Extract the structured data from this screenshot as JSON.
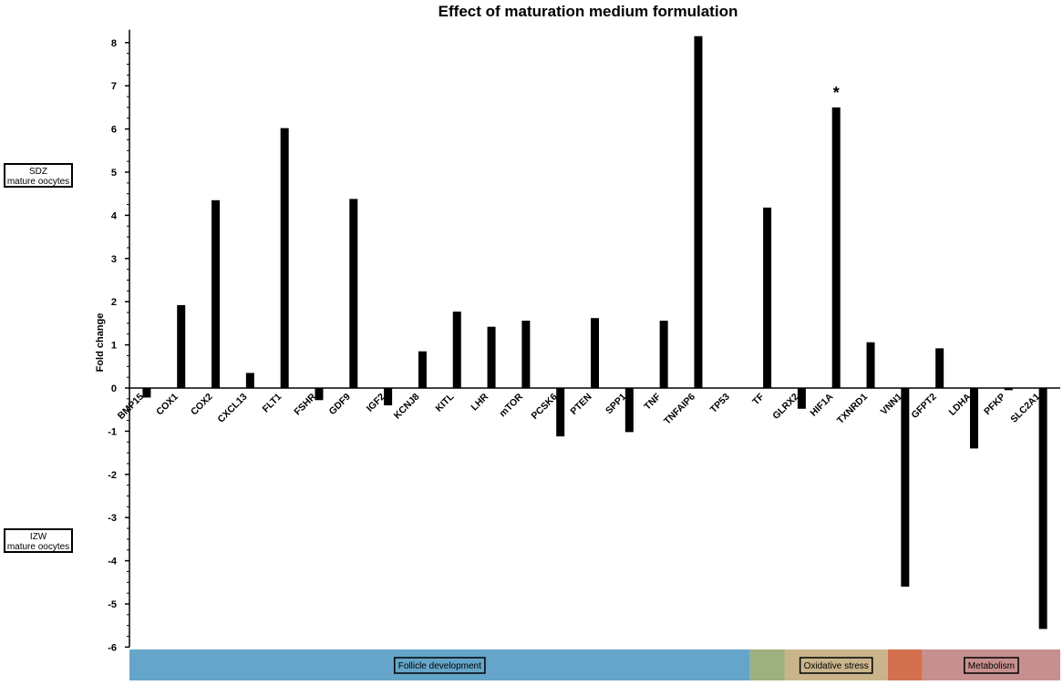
{
  "chart_data": {
    "type": "bar",
    "title": "Effect of maturation medium formulation",
    "ylabel": "Fold change",
    "xlabel": "",
    "ylim": [
      -6,
      8.3
    ],
    "yticks": [
      -6,
      -5,
      -4,
      -3,
      -2,
      -1,
      0,
      1,
      2,
      3,
      4,
      5,
      6,
      7,
      8
    ],
    "categories": [
      "BMP15",
      "COX1",
      "COX2",
      "CXCL13",
      "FLT1",
      "FSHR",
      "GDF9",
      "IGF2",
      "KCNJ8",
      "KITL",
      "LHR",
      "mTOR",
      "PCSK6",
      "PTEN",
      "SPP1",
      "TNF",
      "TNFAIP6",
      "TP53",
      "TF",
      "GLRX2",
      "HIF1A",
      "TXNRD1",
      "VNN1",
      "GFPT2",
      "LDHA",
      "PFKP",
      "SLC2A1"
    ],
    "values": [
      -0.22,
      1.92,
      4.35,
      0.35,
      6.02,
      -0.28,
      4.38,
      -0.4,
      0.85,
      1.77,
      1.42,
      1.56,
      -1.12,
      1.62,
      -1.02,
      1.56,
      8.15,
      0.0,
      4.18,
      -0.48,
      6.5,
      1.06,
      -4.6,
      0.92,
      -1.4,
      -0.05,
      -5.58
    ],
    "annotations": [
      {
        "category": "HIF1A",
        "text": "*"
      }
    ],
    "grid": false,
    "groups": [
      {
        "label": "Follicle development",
        "color": "#65a5c9",
        "start": 0,
        "end": 18
      },
      {
        "label": "",
        "color": "#9cb080",
        "start": 18,
        "end": 19
      },
      {
        "label": "Oxidative stress",
        "color": "#c9b48c",
        "start": 19,
        "end": 22
      },
      {
        "label": "",
        "color": "#d2704f",
        "start": 22,
        "end": 23
      },
      {
        "label": "Metabolism",
        "color": "#c79090",
        "start": 23,
        "end": 27
      }
    ]
  },
  "side_labels": {
    "top": {
      "line1": "SDZ",
      "line2": "mature oocytes"
    },
    "bottom": {
      "line1": "IZW",
      "line2": "mature oocytes"
    }
  }
}
